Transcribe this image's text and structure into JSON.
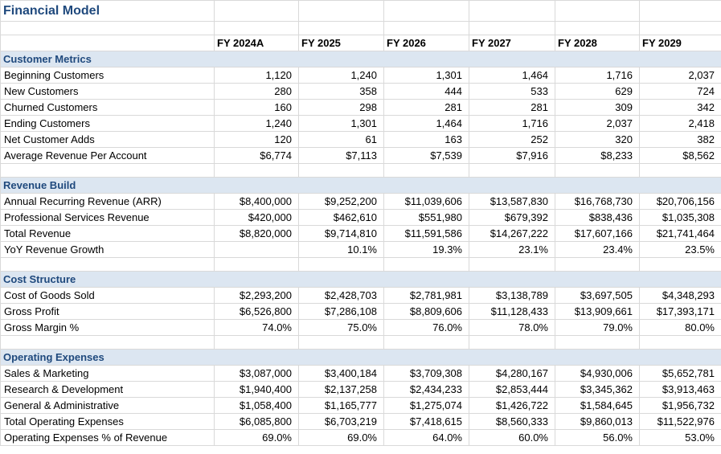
{
  "title": "Financial Model",
  "columns": [
    "FY 2024A",
    "FY 2025",
    "FY 2026",
    "FY 2027",
    "FY 2028",
    "FY 2029"
  ],
  "sections": [
    {
      "name": "Customer Metrics",
      "rows": [
        {
          "label": "Beginning Customers",
          "values": [
            "1,120",
            "1,240",
            "1,301",
            "1,464",
            "1,716",
            "2,037"
          ]
        },
        {
          "label": "New Customers",
          "values": [
            "280",
            "358",
            "444",
            "533",
            "629",
            "724"
          ]
        },
        {
          "label": "Churned Customers",
          "values": [
            "160",
            "298",
            "281",
            "281",
            "309",
            "342"
          ]
        },
        {
          "label": "Ending Customers",
          "values": [
            "1,240",
            "1,301",
            "1,464",
            "1,716",
            "2,037",
            "2,418"
          ]
        },
        {
          "label": "Net Customer Adds",
          "values": [
            "120",
            "61",
            "163",
            "252",
            "320",
            "382"
          ]
        },
        {
          "label": "Average Revenue Per Account",
          "values": [
            "$6,774",
            "$7,113",
            "$7,539",
            "$7,916",
            "$8,233",
            "$8,562"
          ]
        }
      ]
    },
    {
      "name": "Revenue Build",
      "rows": [
        {
          "label": "Annual Recurring Revenue (ARR)",
          "values": [
            "$8,400,000",
            "$9,252,200",
            "$11,039,606",
            "$13,587,830",
            "$16,768,730",
            "$20,706,156"
          ]
        },
        {
          "label": "Professional Services Revenue",
          "values": [
            "$420,000",
            "$462,610",
            "$551,980",
            "$679,392",
            "$838,436",
            "$1,035,308"
          ]
        },
        {
          "label": "Total Revenue",
          "values": [
            "$8,820,000",
            "$9,714,810",
            "$11,591,586",
            "$14,267,222",
            "$17,607,166",
            "$21,741,464"
          ]
        },
        {
          "label": "YoY Revenue Growth",
          "values": [
            "",
            "10.1%",
            "19.3%",
            "23.1%",
            "23.4%",
            "23.5%"
          ]
        }
      ]
    },
    {
      "name": "Cost Structure",
      "rows": [
        {
          "label": "Cost of Goods Sold",
          "values": [
            "$2,293,200",
            "$2,428,703",
            "$2,781,981",
            "$3,138,789",
            "$3,697,505",
            "$4,348,293"
          ]
        },
        {
          "label": "Gross Profit",
          "values": [
            "$6,526,800",
            "$7,286,108",
            "$8,809,606",
            "$11,128,433",
            "$13,909,661",
            "$17,393,171"
          ]
        },
        {
          "label": "Gross Margin %",
          "values": [
            "74.0%",
            "75.0%",
            "76.0%",
            "78.0%",
            "79.0%",
            "80.0%"
          ]
        }
      ]
    },
    {
      "name": "Operating Expenses",
      "rows": [
        {
          "label": "Sales & Marketing",
          "values": [
            "$3,087,000",
            "$3,400,184",
            "$3,709,308",
            "$4,280,167",
            "$4,930,006",
            "$5,652,781"
          ]
        },
        {
          "label": "Research & Development",
          "values": [
            "$1,940,400",
            "$2,137,258",
            "$2,434,233",
            "$2,853,444",
            "$3,345,362",
            "$3,913,463"
          ]
        },
        {
          "label": "General & Administrative",
          "values": [
            "$1,058,400",
            "$1,165,777",
            "$1,275,074",
            "$1,426,722",
            "$1,584,645",
            "$1,956,732"
          ]
        },
        {
          "label": "Total Operating Expenses",
          "values": [
            "$6,085,800",
            "$6,703,219",
            "$7,418,615",
            "$8,560,333",
            "$9,860,013",
            "$11,522,976"
          ]
        },
        {
          "label": "Operating Expenses % of Revenue",
          "values": [
            "69.0%",
            "69.0%",
            "64.0%",
            "60.0%",
            "56.0%",
            "53.0%"
          ]
        }
      ]
    }
  ],
  "colors": {
    "accent": "#1f497d",
    "band_bg": "#dce6f1",
    "grid": "#d9d9d9"
  }
}
